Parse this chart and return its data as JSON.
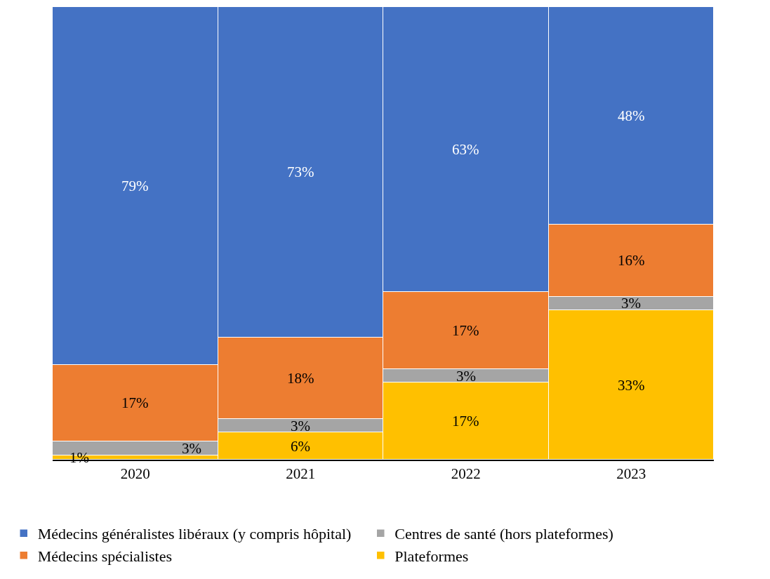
{
  "chart_data": {
    "type": "bar",
    "stacked": true,
    "categories": [
      "2020",
      "2021",
      "2022",
      "2023"
    ],
    "series": [
      {
        "name": "Plateformes",
        "color": "#ffc000",
        "values": [
          1,
          6,
          17,
          33
        ],
        "value_labels": [
          "1%",
          "6%",
          "17%",
          "33%"
        ]
      },
      {
        "name": "Centres de santé (hors plateformes)",
        "color": "#a5a5a5",
        "values": [
          3,
          3,
          3,
          3
        ],
        "value_labels": [
          "3%",
          "3%",
          "3%",
          "3%"
        ]
      },
      {
        "name": "Médecins spécialistes",
        "color": "#ed7d31",
        "values": [
          17,
          18,
          17,
          16
        ],
        "value_labels": [
          "17%",
          "18%",
          "17%",
          "16%"
        ]
      },
      {
        "name": "Médecins généralistes libéraux (y compris hôpital)",
        "color": "#4472c4",
        "values": [
          79,
          73,
          63,
          48
        ],
        "value_labels": [
          "79%",
          "73%",
          "63%",
          "48%"
        ]
      }
    ],
    "ylim": [
      0,
      100
    ],
    "tick_labels": "x",
    "legend": "bottom"
  }
}
